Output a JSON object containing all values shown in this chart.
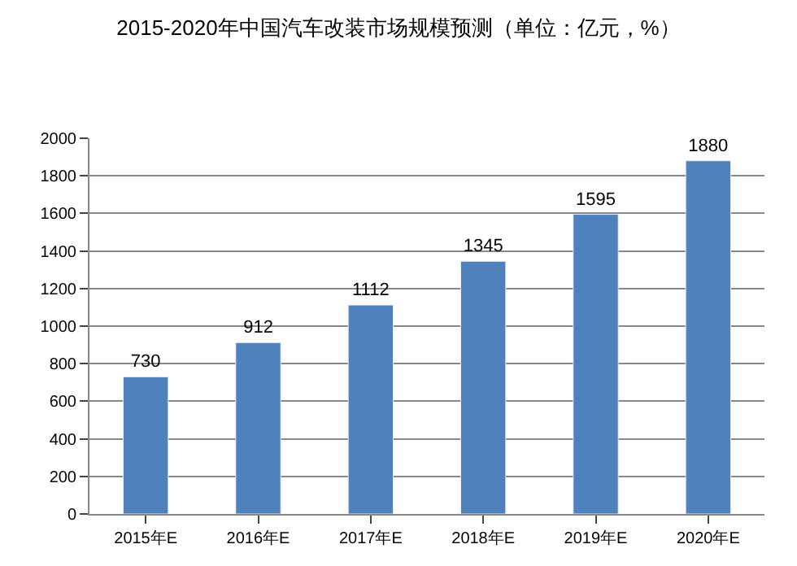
{
  "chart_data": {
    "type": "bar",
    "title": "2015-2020年中国汽车改装市场规模预测（单位：亿元，%）",
    "categories": [
      "2015年E",
      "2016年E",
      "2017年E",
      "2018年E",
      "2019年E",
      "2020年E"
    ],
    "values": [
      730,
      912,
      1112,
      1345,
      1595,
      1880
    ],
    "color": "#4f81bd",
    "ylim": [
      0,
      2000
    ],
    "yticks": [
      0,
      200,
      400,
      600,
      800,
      1000,
      1200,
      1400,
      1600,
      1800,
      2000
    ],
    "grid": "y",
    "data_labels": true,
    "legend": false
  }
}
